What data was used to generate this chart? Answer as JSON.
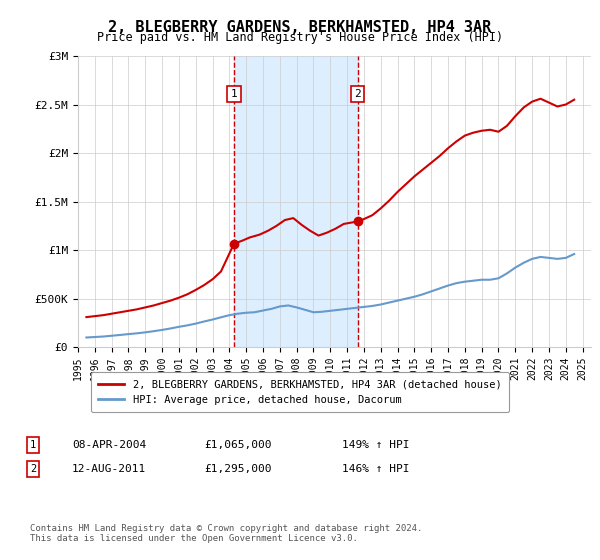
{
  "title": "2, BLEGBERRY GARDENS, BERKHAMSTED, HP4 3AR",
  "subtitle": "Price paid vs. HM Land Registry's House Price Index (HPI)",
  "ylabel_ticks": [
    "£0",
    "£500K",
    "£1M",
    "£1.5M",
    "£2M",
    "£2.5M",
    "£3M"
  ],
  "ytick_values": [
    0,
    500000,
    1000000,
    1500000,
    2000000,
    2500000,
    3000000
  ],
  "ylim": [
    0,
    3000000
  ],
  "xlim_start": 1995,
  "xlim_end": 2025,
  "red_line_color": "#cc0000",
  "blue_line_color": "#6699cc",
  "annotation_box_color": "#cc0000",
  "shaded_region_color": "#ddeeff",
  "event1_x": 2004.27,
  "event1_label": "1",
  "event1_price": 1065000,
  "event2_x": 2011.62,
  "event2_label": "2",
  "event2_price": 1295000,
  "legend_red_label": "2, BLEGBERRY GARDENS, BERKHAMSTED, HP4 3AR (detached house)",
  "legend_blue_label": "HPI: Average price, detached house, Dacorum",
  "footer": "Contains HM Land Registry data © Crown copyright and database right 2024.\nThis data is licensed under the Open Government Licence v3.0.",
  "red_data": {
    "x": [
      1995.5,
      1996.0,
      1996.5,
      1997.0,
      1997.5,
      1998.0,
      1998.5,
      1999.0,
      1999.5,
      2000.0,
      2000.5,
      2001.0,
      2001.5,
      2002.0,
      2002.5,
      2003.0,
      2003.5,
      2004.27,
      2004.8,
      2005.2,
      2005.8,
      2006.3,
      2006.8,
      2007.3,
      2007.8,
      2008.3,
      2008.8,
      2009.3,
      2009.8,
      2010.3,
      2010.8,
      2011.62,
      2012.0,
      2012.5,
      2013.0,
      2013.5,
      2014.0,
      2014.5,
      2015.0,
      2015.5,
      2016.0,
      2016.5,
      2017.0,
      2017.5,
      2018.0,
      2018.5,
      2019.0,
      2019.5,
      2020.0,
      2020.5,
      2021.0,
      2021.5,
      2022.0,
      2022.5,
      2023.0,
      2023.5,
      2024.0,
      2024.5
    ],
    "y": [
      310000,
      320000,
      330000,
      345000,
      360000,
      375000,
      390000,
      410000,
      430000,
      455000,
      480000,
      510000,
      545000,
      590000,
      640000,
      700000,
      780000,
      1065000,
      1100000,
      1130000,
      1160000,
      1200000,
      1250000,
      1310000,
      1330000,
      1260000,
      1200000,
      1150000,
      1180000,
      1220000,
      1270000,
      1295000,
      1320000,
      1360000,
      1430000,
      1510000,
      1600000,
      1680000,
      1760000,
      1830000,
      1900000,
      1970000,
      2050000,
      2120000,
      2180000,
      2210000,
      2230000,
      2240000,
      2220000,
      2280000,
      2380000,
      2470000,
      2530000,
      2560000,
      2520000,
      2480000,
      2500000,
      2550000
    ]
  },
  "blue_data": {
    "x": [
      1995.5,
      1996.0,
      1996.5,
      1997.0,
      1997.5,
      1998.0,
      1998.5,
      1999.0,
      1999.5,
      2000.0,
      2000.5,
      2001.0,
      2001.5,
      2002.0,
      2002.5,
      2003.0,
      2003.5,
      2004.0,
      2004.5,
      2005.0,
      2005.5,
      2006.0,
      2006.5,
      2007.0,
      2007.5,
      2008.0,
      2008.5,
      2009.0,
      2009.5,
      2010.0,
      2010.5,
      2011.0,
      2011.5,
      2012.0,
      2012.5,
      2013.0,
      2013.5,
      2014.0,
      2014.5,
      2015.0,
      2015.5,
      2016.0,
      2016.5,
      2017.0,
      2017.5,
      2018.0,
      2018.5,
      2019.0,
      2019.5,
      2020.0,
      2020.5,
      2021.0,
      2021.5,
      2022.0,
      2022.5,
      2023.0,
      2023.5,
      2024.0,
      2024.5
    ],
    "y": [
      100000,
      105000,
      110000,
      118000,
      126000,
      135000,
      143000,
      153000,
      165000,
      178000,
      193000,
      210000,
      225000,
      243000,
      265000,
      285000,
      308000,
      330000,
      345000,
      355000,
      360000,
      378000,
      395000,
      420000,
      430000,
      410000,
      385000,
      360000,
      365000,
      375000,
      385000,
      395000,
      405000,
      415000,
      425000,
      440000,
      460000,
      480000,
      500000,
      520000,
      545000,
      575000,
      605000,
      635000,
      660000,
      675000,
      685000,
      695000,
      695000,
      710000,
      760000,
      820000,
      870000,
      910000,
      930000,
      920000,
      910000,
      920000,
      960000
    ]
  }
}
